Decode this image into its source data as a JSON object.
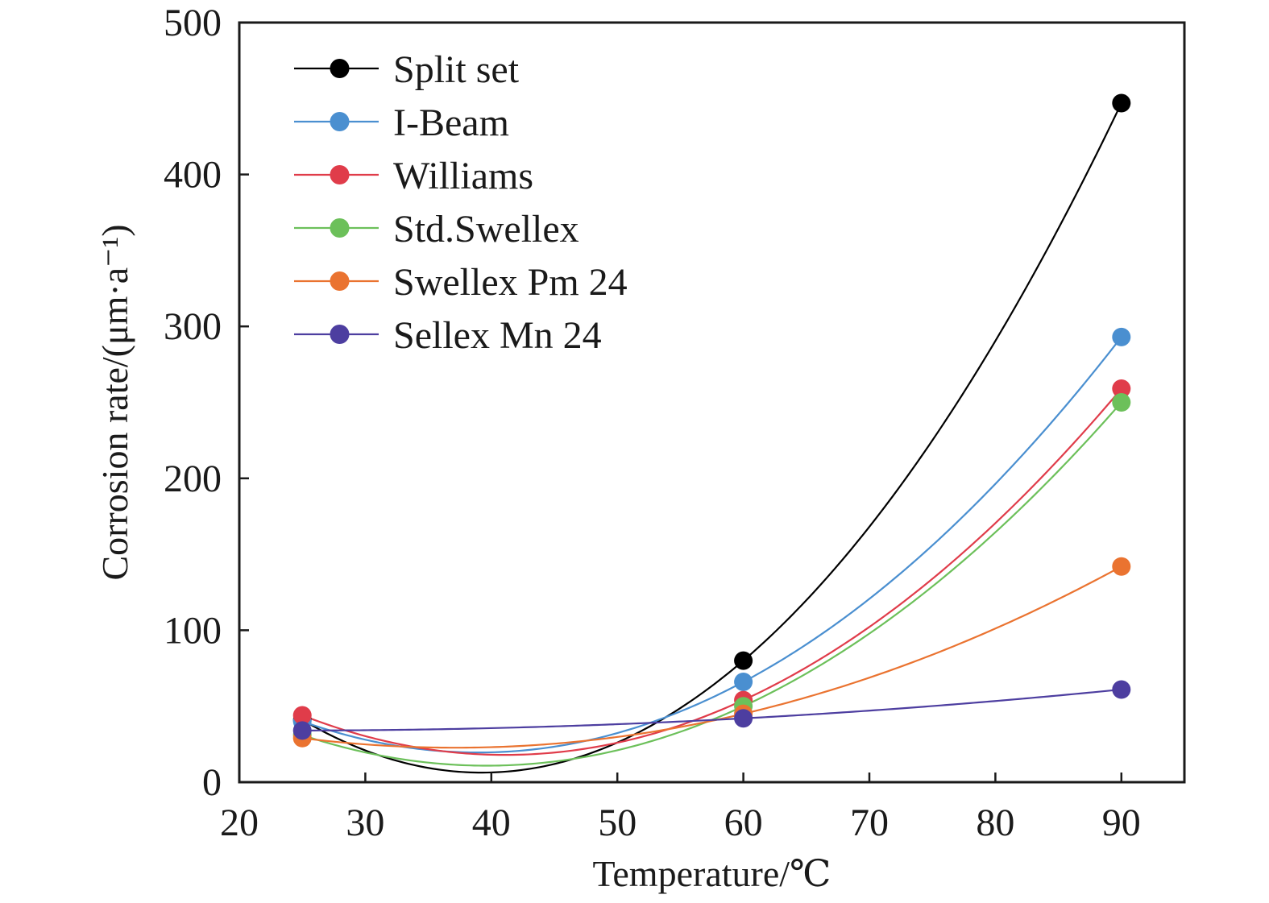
{
  "chart_data": {
    "type": "line",
    "title": "",
    "xlabel": "Temperature/℃",
    "ylabel": "Corrosion rate/(μm·a⁻¹)",
    "xlim": [
      20,
      95
    ],
    "ylim": [
      0,
      500
    ],
    "xticks": [
      "20",
      "30",
      "40",
      "50",
      "60",
      "70",
      "80",
      "90"
    ],
    "yticks": [
      "0",
      "100",
      "200",
      "300",
      "400",
      "500"
    ],
    "x": [
      25,
      60,
      90
    ],
    "grid": false,
    "legend_position": "top-left",
    "series": [
      {
        "name": "Split set",
        "color": "#000000",
        "values": [
          41,
          80,
          447
        ]
      },
      {
        "name": "I-Beam",
        "color": "#4a8fd0",
        "values": [
          40,
          66,
          293
        ]
      },
      {
        "name": "Williams",
        "color": "#e03c4a",
        "values": [
          44,
          54,
          259
        ]
      },
      {
        "name": "Std.Swellex",
        "color": "#6cc05a",
        "values": [
          31,
          50,
          250
        ]
      },
      {
        "name": "Swellex Pm 24",
        "color": "#ea7330",
        "values": [
          29,
          45,
          142
        ]
      },
      {
        "name": "Sellex Mn 24",
        "color": "#4d3ea0",
        "values": [
          34,
          42,
          61
        ]
      }
    ]
  }
}
